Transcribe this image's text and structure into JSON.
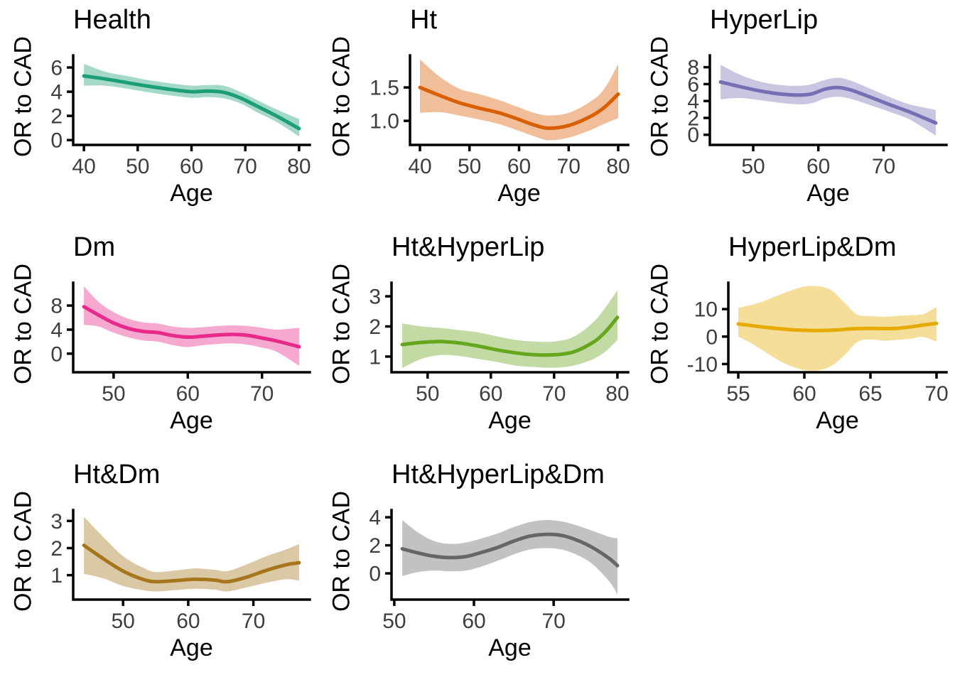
{
  "figure": {
    "background": "#FFFFFF",
    "axis_color": "#000000",
    "tick_label_color": "#3E3E3E"
  },
  "style": {
    "band_opacity": 0.4,
    "line_width": 5
  },
  "chart_data": [
    {
      "type": "line",
      "title": "Health",
      "xlabel": "Age",
      "ylabel": "OR to CAD",
      "color": "#1B9E77",
      "legend": "none",
      "grid": "off",
      "xlim": [
        38,
        82
      ],
      "ylim": [
        -0.4,
        7.0
      ],
      "x_ticks": [
        40,
        50,
        60,
        70,
        80
      ],
      "x_tick_labels": [
        "40",
        "50",
        "60",
        "70",
        "80"
      ],
      "y_ticks": [
        0,
        2,
        4,
        6
      ],
      "y_tick_labels": [
        "0",
        "2",
        "4",
        "6"
      ],
      "x": [
        40,
        44,
        48,
        52,
        56,
        60,
        63,
        66,
        69,
        72,
        76,
        80
      ],
      "y": [
        5.3,
        5.05,
        4.75,
        4.45,
        4.2,
        4.0,
        4.05,
        3.95,
        3.5,
        2.85,
        1.95,
        0.95
      ],
      "y_lower": [
        4.5,
        4.5,
        4.25,
        3.95,
        3.7,
        3.5,
        3.55,
        3.45,
        3.05,
        2.35,
        1.45,
        0.3
      ],
      "y_upper": [
        6.3,
        5.65,
        5.3,
        4.95,
        4.7,
        4.5,
        4.55,
        4.5,
        4.0,
        3.35,
        2.5,
        1.75
      ]
    },
    {
      "type": "line",
      "title": "Ht",
      "xlabel": "Age",
      "ylabel": "OR to CAD",
      "color": "#D95F02",
      "legend": "none",
      "grid": "off",
      "xlim": [
        38,
        82
      ],
      "ylim": [
        0.64,
        1.98
      ],
      "x_ticks": [
        40,
        50,
        60,
        70,
        80
      ],
      "x_tick_labels": [
        "40",
        "50",
        "60",
        "70",
        "80"
      ],
      "y_ticks": [
        1.0,
        1.5
      ],
      "y_tick_labels": [
        "1.0",
        "1.5"
      ],
      "x": [
        40,
        44,
        48,
        52,
        56,
        60,
        63,
        66,
        70,
        74,
        77,
        80
      ],
      "y": [
        1.5,
        1.38,
        1.27,
        1.19,
        1.12,
        1.02,
        0.94,
        0.89,
        0.93,
        1.05,
        1.19,
        1.4
      ],
      "y_lower": [
        1.12,
        1.13,
        1.08,
        1.02,
        0.95,
        0.85,
        0.77,
        0.71,
        0.75,
        0.85,
        0.95,
        1.04
      ],
      "y_upper": [
        1.92,
        1.66,
        1.48,
        1.4,
        1.31,
        1.2,
        1.12,
        1.08,
        1.12,
        1.27,
        1.46,
        1.85
      ]
    },
    {
      "type": "line",
      "title": "HyperLip",
      "xlabel": "Age",
      "ylabel": "OR to CAD",
      "color": "#7570B3",
      "legend": "none",
      "grid": "off",
      "xlim": [
        43.35,
        79.65
      ],
      "ylim": [
        -1.2,
        9.4
      ],
      "x_ticks": [
        50,
        60,
        70
      ],
      "x_tick_labels": [
        "50",
        "60",
        "70"
      ],
      "y_ticks": [
        0,
        2,
        4,
        6,
        8
      ],
      "y_tick_labels": [
        "0",
        "2",
        "4",
        "6",
        "8"
      ],
      "x": [
        45,
        48,
        51,
        54,
        57,
        59,
        61,
        63,
        65,
        68,
        71,
        74,
        78
      ],
      "y": [
        6.25,
        5.7,
        5.2,
        4.85,
        4.7,
        4.85,
        5.4,
        5.6,
        5.3,
        4.45,
        3.55,
        2.7,
        1.4
      ],
      "y_lower": [
        4.2,
        4.35,
        4.1,
        3.8,
        3.6,
        3.75,
        4.3,
        4.5,
        4.25,
        3.5,
        2.7,
        1.8,
        -0.1
      ],
      "y_upper": [
        8.3,
        7.1,
        6.3,
        5.9,
        5.8,
        6.0,
        6.5,
        6.75,
        6.4,
        5.45,
        4.45,
        3.6,
        2.95
      ]
    },
    {
      "type": "line",
      "title": "Dm",
      "xlabel": "Age",
      "ylabel": "OR to CAD",
      "color": "#E7298A",
      "legend": "none",
      "grid": "off",
      "xlim": [
        44.55,
        76.45
      ],
      "ylim": [
        -3.1,
        11.8
      ],
      "x_ticks": [
        50,
        60,
        70
      ],
      "x_tick_labels": [
        "50",
        "60",
        "70"
      ],
      "y_ticks": [
        0,
        4,
        8
      ],
      "y_tick_labels": [
        "0",
        "4",
        "8"
      ],
      "x": [
        46,
        48,
        50,
        52,
        54,
        56,
        58,
        60,
        62,
        64,
        66,
        68,
        70,
        72,
        75
      ],
      "y": [
        7.8,
        6.4,
        5.1,
        4.2,
        3.7,
        3.5,
        3.0,
        2.75,
        2.9,
        3.1,
        3.2,
        3.05,
        2.6,
        2.1,
        1.15
      ],
      "y_lower": [
        4.8,
        4.5,
        3.5,
        2.7,
        2.2,
        2.0,
        1.4,
        1.1,
        1.4,
        1.6,
        1.7,
        1.5,
        1.0,
        0.3,
        -2.0
      ],
      "y_upper": [
        11.2,
        8.6,
        6.9,
        5.8,
        5.2,
        5.0,
        4.5,
        4.3,
        4.4,
        4.6,
        4.7,
        4.6,
        4.3,
        4.0,
        4.3
      ]
    },
    {
      "type": "line",
      "title": "Ht&HyperLip",
      "xlabel": "Age",
      "ylabel": "OR to CAD",
      "color": "#66A61E",
      "legend": "none",
      "grid": "off",
      "xlim": [
        44.3,
        81.7
      ],
      "ylim": [
        0.48,
        3.45
      ],
      "x_ticks": [
        50,
        60,
        70,
        80
      ],
      "x_tick_labels": [
        "50",
        "60",
        "70",
        "80"
      ],
      "y_ticks": [
        1,
        2,
        3
      ],
      "y_tick_labels": [
        "1",
        "2",
        "3"
      ],
      "x": [
        46,
        49,
        52,
        55,
        58,
        61,
        64,
        67,
        70,
        73,
        76,
        78,
        80
      ],
      "y": [
        1.4,
        1.47,
        1.5,
        1.45,
        1.35,
        1.22,
        1.12,
        1.06,
        1.06,
        1.15,
        1.45,
        1.8,
        2.3
      ],
      "y_lower": [
        0.62,
        0.92,
        1.05,
        1.02,
        0.92,
        0.82,
        0.7,
        0.65,
        0.63,
        0.7,
        0.9,
        1.15,
        1.55
      ],
      "y_upper": [
        2.1,
        2.0,
        1.95,
        1.88,
        1.8,
        1.67,
        1.55,
        1.5,
        1.5,
        1.65,
        2.1,
        2.6,
        3.2
      ]
    },
    {
      "type": "line",
      "title": "HyperLip&Dm",
      "xlabel": "Age",
      "ylabel": "OR to CAD",
      "color": "#E6AB02",
      "legend": "none",
      "grid": "off",
      "xlim": [
        54.25,
        70.75
      ],
      "ylim": [
        -13,
        19.6
      ],
      "x_ticks": [
        55,
        60,
        65,
        70
      ],
      "x_tick_labels": [
        "55",
        "60",
        "65",
        "70"
      ],
      "y_ticks": [
        -10,
        0,
        10
      ],
      "y_tick_labels": [
        "-10",
        "0",
        "10"
      ],
      "x": [
        55,
        56,
        57,
        58,
        59,
        60,
        61,
        62,
        63,
        64,
        65,
        66,
        67,
        68,
        69,
        70
      ],
      "y": [
        4.6,
        4.0,
        3.4,
        2.9,
        2.5,
        2.3,
        2.2,
        2.3,
        2.6,
        2.9,
        3.0,
        2.9,
        3.0,
        3.5,
        4.2,
        4.8
      ],
      "y_lower": [
        0.0,
        -2.5,
        -5.5,
        -8.5,
        -10.8,
        -12.2,
        -12.3,
        -10.8,
        -7.0,
        -2.0,
        -1.0,
        -1.5,
        -1.2,
        -0.8,
        -0.2,
        -1.8
      ],
      "y_upper": [
        10.5,
        11.5,
        13.0,
        15.0,
        16.8,
        18.2,
        18.3,
        17.0,
        12.5,
        8.0,
        7.5,
        7.2,
        7.5,
        7.8,
        8.2,
        10.8
      ]
    },
    {
      "type": "line",
      "title": "Ht&Dm",
      "xlabel": "Age",
      "ylabel": "OR to CAD",
      "color": "#A6761D",
      "legend": "none",
      "grid": "off",
      "xlim": [
        42.35,
        78.65
      ],
      "ylim": [
        0.1,
        3.4
      ],
      "x_ticks": [
        50,
        60,
        70
      ],
      "x_tick_labels": [
        "50",
        "60",
        "70"
      ],
      "y_ticks": [
        1,
        2,
        3
      ],
      "y_tick_labels": [
        "1",
        "2",
        "3"
      ],
      "x": [
        44,
        47,
        50,
        53,
        55,
        58,
        61,
        64,
        66,
        69,
        72,
        75,
        77
      ],
      "y": [
        2.1,
        1.6,
        1.15,
        0.85,
        0.76,
        0.8,
        0.85,
        0.82,
        0.76,
        0.93,
        1.18,
        1.38,
        1.46
      ],
      "y_lower": [
        1.05,
        0.88,
        0.6,
        0.45,
        0.4,
        0.45,
        0.5,
        0.47,
        0.4,
        0.55,
        0.72,
        0.85,
        0.8
      ],
      "y_upper": [
        3.15,
        2.4,
        1.7,
        1.28,
        1.12,
        1.17,
        1.25,
        1.2,
        1.15,
        1.4,
        1.7,
        1.95,
        2.15
      ]
    },
    {
      "type": "line",
      "title": "Ht&HyperLip&Dm",
      "xlabel": "Age",
      "ylabel": "OR to CAD",
      "color": "#666666",
      "legend": "none",
      "grid": "off",
      "xlim": [
        49.65,
        79.35
      ],
      "ylim": [
        -1.87,
        4.51
      ],
      "x_ticks": [
        50,
        60,
        70
      ],
      "x_tick_labels": [
        "50",
        "60",
        "70"
      ],
      "y_ticks": [
        0,
        2,
        4
      ],
      "y_tick_labels": [
        "0",
        "2",
        "4"
      ],
      "x": [
        51,
        53,
        55,
        57,
        59,
        61,
        63,
        65,
        67,
        69,
        71,
        73,
        75,
        77,
        78
      ],
      "y": [
        1.75,
        1.45,
        1.22,
        1.12,
        1.2,
        1.5,
        1.85,
        2.3,
        2.65,
        2.78,
        2.7,
        2.35,
        1.8,
        1.05,
        0.55
      ],
      "y_lower": [
        -0.2,
        0.1,
        0.2,
        0.15,
        0.2,
        0.5,
        0.9,
        1.35,
        1.7,
        1.8,
        1.7,
        1.3,
        0.6,
        -0.6,
        -1.5
      ],
      "y_upper": [
        3.8,
        2.9,
        2.3,
        2.1,
        2.2,
        2.5,
        2.85,
        3.3,
        3.65,
        3.8,
        3.7,
        3.4,
        3.0,
        2.6,
        2.5
      ]
    }
  ]
}
